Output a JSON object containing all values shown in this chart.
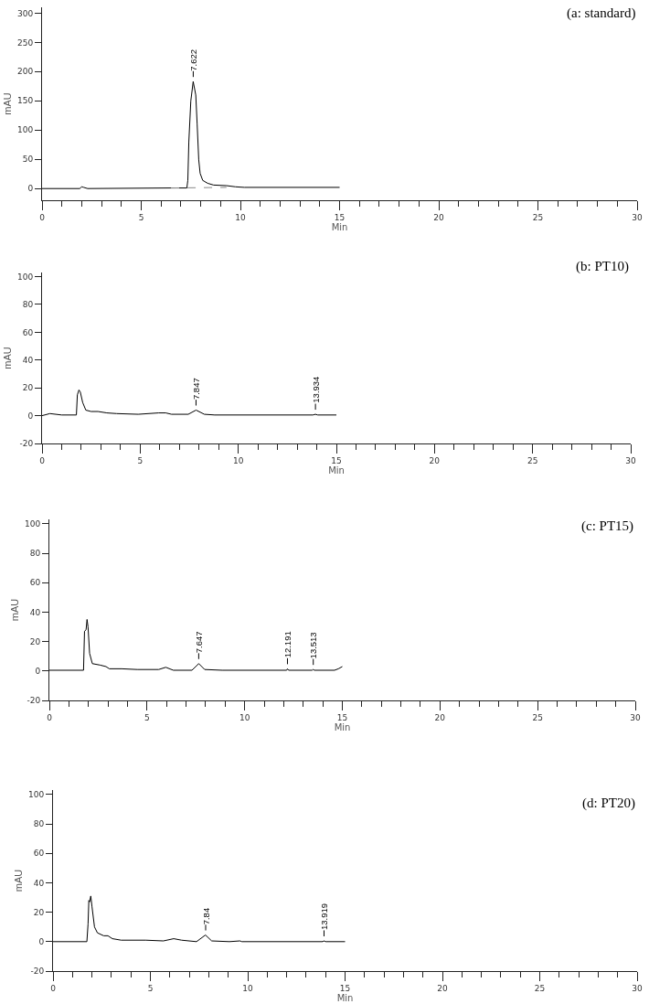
{
  "chart_data": [
    {
      "type": "line",
      "title": "(a: standard)",
      "xlabel": "Min",
      "ylabel": "mAU",
      "xlim": [
        0,
        30
      ],
      "ylim": [
        -20,
        310
      ],
      "xticks": [
        0,
        {
          "value": 1,
          "label": null
        },
        {
          "value": 2,
          "label": null
        },
        {
          "value": 3,
          "label": null
        },
        {
          "value": 4,
          "label": null
        },
        5,
        {
          "value": 6,
          "label": null
        },
        {
          "value": 7,
          "label": null
        },
        {
          "value": 8,
          "label": null
        },
        {
          "value": 9,
          "label": null
        },
        10,
        {
          "value": 11,
          "label": null
        },
        {
          "value": 12,
          "label": null
        },
        {
          "value": 13,
          "label": null
        },
        {
          "value": 14,
          "label": null
        },
        15,
        {
          "value": 16,
          "label": null
        },
        {
          "value": 17,
          "label": null
        },
        {
          "value": 18,
          "label": null
        },
        {
          "value": 19,
          "label": null
        },
        20,
        {
          "value": 21,
          "label": null
        },
        {
          "value": 22,
          "label": null
        },
        {
          "value": 23,
          "label": null
        },
        {
          "value": 24,
          "label": null
        },
        25,
        {
          "value": 26,
          "label": null
        },
        {
          "value": 27,
          "label": null
        },
        {
          "value": 28,
          "label": null
        },
        {
          "value": 29,
          "label": null
        },
        30
      ],
      "yticks": [
        0,
        50,
        100,
        150,
        200,
        250,
        300
      ],
      "series": [
        {
          "color": "#000000",
          "x": [
            0,
            1.9,
            2.0,
            2.1,
            2.3,
            6.5,
            7.3,
            7.35,
            7.4,
            7.5,
            7.62,
            7.75,
            7.82,
            7.9,
            7.97,
            8.1,
            8.35,
            8.65,
            9.3,
            9.75,
            10.2,
            15
          ],
          "values": [
            0,
            0,
            3,
            2,
            0,
            1,
            1,
            14,
            80,
            150,
            183,
            160,
            110,
            49,
            26,
            14,
            9,
            6,
            5,
            3,
            2,
            2
          ]
        },
        {
          "color": "#888888",
          "line_style": "dashed",
          "x": [
            6.5,
            9.3
          ],
          "values": [
            1,
            2
          ]
        }
      ],
      "annotations": [
        {
          "text": "7.622",
          "x": 7.622,
          "y": 183
        }
      ]
    },
    {
      "type": "line",
      "title": "(b: PT10)",
      "xlabel": "Min",
      "ylabel": "mAU",
      "xlim": [
        0,
        30
      ],
      "ylim": [
        -20,
        103
      ],
      "xticks": [
        0,
        {
          "value": 1,
          "label": null
        },
        {
          "value": 2,
          "label": null
        },
        {
          "value": 3,
          "label": null
        },
        {
          "value": 4,
          "label": null
        },
        5,
        {
          "value": 6,
          "label": null
        },
        {
          "value": 7,
          "label": null
        },
        {
          "value": 8,
          "label": null
        },
        {
          "value": 9,
          "label": null
        },
        10,
        {
          "value": 11,
          "label": null
        },
        {
          "value": 12,
          "label": null
        },
        {
          "value": 13,
          "label": null
        },
        {
          "value": 14,
          "label": null
        },
        15,
        {
          "value": 16,
          "label": null
        },
        {
          "value": 17,
          "label": null
        },
        {
          "value": 18,
          "label": null
        },
        {
          "value": 19,
          "label": null
        },
        20,
        {
          "value": 21,
          "label": null
        },
        {
          "value": 22,
          "label": null
        },
        {
          "value": 23,
          "label": null
        },
        {
          "value": 24,
          "label": null
        },
        25,
        {
          "value": 26,
          "label": null
        },
        {
          "value": 27,
          "label": null
        },
        {
          "value": 28,
          "label": null
        },
        {
          "value": 29,
          "label": null
        },
        30
      ],
      "yticks": [
        -20,
        0,
        20,
        40,
        60,
        80,
        100
      ],
      "series": [
        {
          "color": "#000000",
          "x": [
            0,
            0.4,
            1.0,
            1.75,
            1.8,
            1.88,
            1.95,
            2.07,
            2.23,
            2.5,
            2.85,
            3.3,
            3.8,
            4.9,
            5.95,
            6.3,
            6.6,
            7.45,
            7.85,
            8.27,
            8.8,
            13.8,
            13.93,
            14.05,
            15
          ],
          "values": [
            0,
            1.5,
            0.5,
            0.5,
            15,
            18.5,
            17,
            9.5,
            4,
            3,
            3,
            2,
            1.5,
            1,
            2,
            2,
            1,
            1,
            4,
            1,
            0.5,
            0.5,
            1,
            0.5,
            0.5
          ]
        }
      ],
      "annotations": [
        {
          "text": "7.847",
          "x": 7.847,
          "y": 4
        },
        {
          "text": "13.934",
          "x": 13.934,
          "y": 1
        }
      ]
    },
    {
      "type": "line",
      "title": "(c: PT15)",
      "xlabel": "Min",
      "ylabel": "mAU",
      "xlim": [
        0,
        30
      ],
      "ylim": [
        -20,
        103
      ],
      "xticks": [
        0,
        {
          "value": 1,
          "label": null
        },
        {
          "value": 2,
          "label": null
        },
        {
          "value": 3,
          "label": null
        },
        {
          "value": 4,
          "label": null
        },
        5,
        {
          "value": 6,
          "label": null
        },
        {
          "value": 7,
          "label": null
        },
        {
          "value": 8,
          "label": null
        },
        {
          "value": 9,
          "label": null
        },
        10,
        {
          "value": 11,
          "label": null
        },
        {
          "value": 12,
          "label": null
        },
        {
          "value": 13,
          "label": null
        },
        {
          "value": 14,
          "label": null
        },
        15,
        {
          "value": 16,
          "label": null
        },
        {
          "value": 17,
          "label": null
        },
        {
          "value": 18,
          "label": null
        },
        {
          "value": 19,
          "label": null
        },
        20,
        {
          "value": 21,
          "label": null
        },
        {
          "value": 22,
          "label": null
        },
        {
          "value": 23,
          "label": null
        },
        {
          "value": 24,
          "label": null
        },
        25,
        {
          "value": 26,
          "label": null
        },
        {
          "value": 27,
          "label": null
        },
        {
          "value": 28,
          "label": null
        },
        {
          "value": 29,
          "label": null
        },
        30
      ],
      "yticks": [
        -20,
        0,
        20,
        40,
        60,
        80,
        100
      ],
      "series": [
        {
          "color": "#000000",
          "x": [
            0,
            1.75,
            1.8,
            1.88,
            1.93,
            1.98,
            2.06,
            2.2,
            2.6,
            2.9,
            3.07,
            3.7,
            4.5,
            5.6,
            5.96,
            6.35,
            7.3,
            7.65,
            7.95,
            8.85,
            12.15,
            12.19,
            12.25,
            13.45,
            13.51,
            13.57,
            14.6,
            14.8,
            15
          ],
          "values": [
            0.5,
            0.5,
            27,
            28,
            35,
            30,
            12,
            5,
            4,
            3,
            1.5,
            1.5,
            1,
            1,
            2.5,
            0.5,
            0.5,
            5,
            1,
            0.5,
            0.5,
            1.5,
            0.5,
            0.5,
            1,
            0.5,
            0.5,
            1.5,
            3
          ]
        }
      ],
      "annotations": [
        {
          "text": "7.647",
          "x": 7.647,
          "y": 5
        },
        {
          "text": "12.191",
          "x": 12.191,
          "y": 1.5
        },
        {
          "text": "13.513",
          "x": 13.513,
          "y": 1
        }
      ]
    },
    {
      "type": "line",
      "title": "(d: PT20)",
      "xlabel": "Min",
      "ylabel": "mAU",
      "xlim": [
        0,
        30
      ],
      "ylim": [
        -20,
        103
      ],
      "xticks": [
        0,
        {
          "value": 1,
          "label": null
        },
        {
          "value": 2,
          "label": null
        },
        {
          "value": 3,
          "label": null
        },
        {
          "value": 4,
          "label": null
        },
        5,
        {
          "value": 6,
          "label": null
        },
        {
          "value": 7,
          "label": null
        },
        {
          "value": 8,
          "label": null
        },
        {
          "value": 9,
          "label": null
        },
        10,
        {
          "value": 11,
          "label": null
        },
        {
          "value": 12,
          "label": null
        },
        {
          "value": 13,
          "label": null
        },
        {
          "value": 14,
          "label": null
        },
        15,
        {
          "value": 16,
          "label": null
        },
        {
          "value": 17,
          "label": null
        },
        {
          "value": 18,
          "label": null
        },
        {
          "value": 19,
          "label": null
        },
        20,
        {
          "value": 21,
          "label": null
        },
        {
          "value": 22,
          "label": null
        },
        {
          "value": 23,
          "label": null
        },
        {
          "value": 24,
          "label": null
        },
        25,
        {
          "value": 26,
          "label": null
        },
        {
          "value": 27,
          "label": null
        },
        {
          "value": 28,
          "label": null
        },
        {
          "value": 29,
          "label": null
        },
        30
      ],
      "yticks": [
        -20,
        0,
        20,
        40,
        60,
        80,
        100
      ],
      "series": [
        {
          "color": "#000000",
          "x": [
            0,
            1.74,
            1.8,
            1.84,
            1.88,
            1.94,
            2.0,
            2.13,
            2.28,
            2.6,
            2.82,
            3.05,
            3.5,
            4.75,
            5.67,
            6.2,
            6.6,
            7.37,
            7.83,
            8.15,
            9.06,
            9.6,
            9.7,
            13.85,
            13.92,
            14.0,
            15
          ],
          "values": [
            0,
            0,
            12,
            28,
            27,
            31,
            24,
            10,
            6,
            4,
            4,
            2,
            1,
            1,
            0.5,
            2,
            1,
            0,
            4.5,
            0.5,
            0,
            0.5,
            0,
            0,
            0.5,
            0,
            0
          ]
        }
      ],
      "annotations": [
        {
          "text": "7.84",
          "x": 7.84,
          "y": 4.5
        },
        {
          "text": "13.919",
          "x": 13.919,
          "y": 0.5
        }
      ]
    }
  ]
}
